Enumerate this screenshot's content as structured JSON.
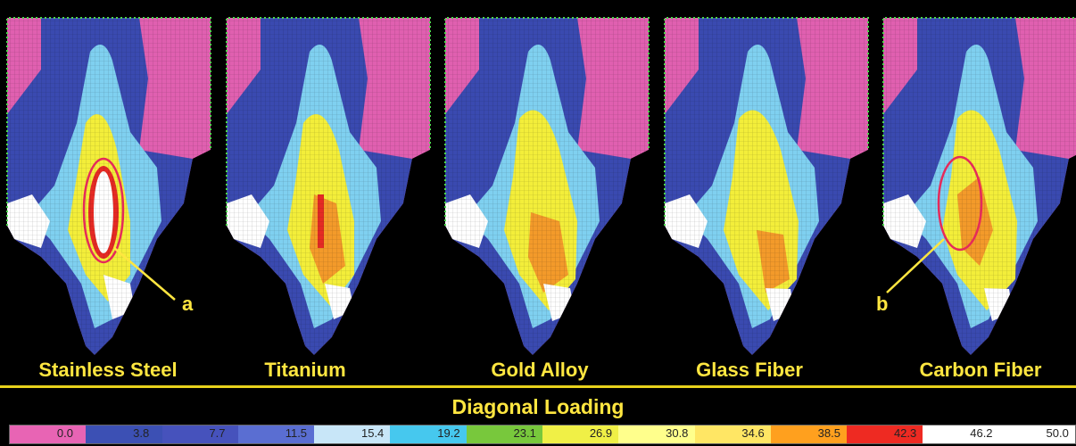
{
  "panels": [
    {
      "label": "Stainless Steel",
      "variant": "steel",
      "callout": "a"
    },
    {
      "label": "Titanium",
      "variant": "titanium",
      "callout": ""
    },
    {
      "label": "Gold Alloy",
      "variant": "gold",
      "callout": ""
    },
    {
      "label": "Glass Fiber",
      "variant": "glass",
      "callout": ""
    },
    {
      "label": "Carbon Fiber",
      "variant": "carbon",
      "callout": "b"
    }
  ],
  "legend": {
    "title": "Diagonal Loading",
    "ticks": [
      "0.0",
      "3.8",
      "7.7",
      "11.5",
      "15.4",
      "19.2",
      "23.1",
      "26.9",
      "30.8",
      "34.6",
      "38.5",
      "42.3",
      "46.2",
      "50.0"
    ],
    "colors": [
      "#e864b4",
      "#3c50b4",
      "#4652bc",
      "#5a6ed2",
      "#c8e6f8",
      "#46c8ee",
      "#78c83c",
      "#f0f046",
      "#ffff8c",
      "#ffe664",
      "#ffa01e",
      "#ee2a22",
      "#ffffff",
      "#ffffff"
    ]
  },
  "colors": {
    "pink": "#e060b0",
    "blue": "#3a4ab0",
    "cyan": "#7fd0f0",
    "yellow": "#f3ee3a",
    "orange": "#f39a2a",
    "red": "#e52a24",
    "white": "#ffffff",
    "accent_text": "#ffe640"
  }
}
